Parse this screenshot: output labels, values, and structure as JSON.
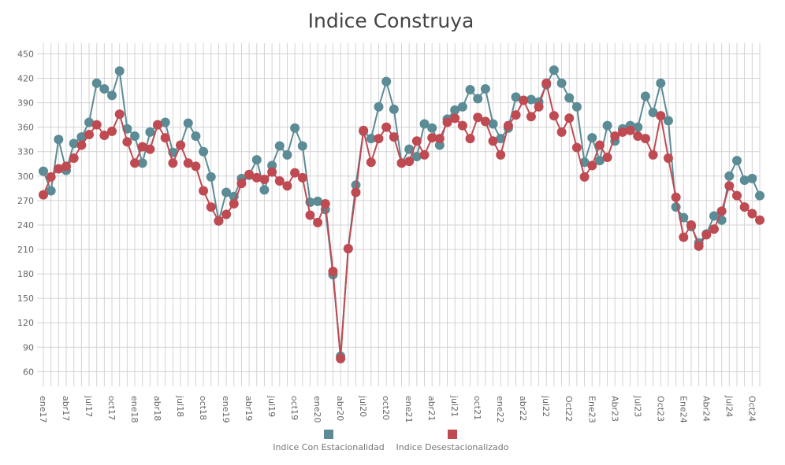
{
  "chart_data": {
    "type": "line",
    "title": "Indice Construya",
    "xlabel": "",
    "ylabel": "",
    "ylim": [
      42,
      463
    ],
    "yticks": [
      60,
      90,
      120,
      150,
      180,
      210,
      240,
      270,
      300,
      330,
      360,
      390,
      420,
      450
    ],
    "grid": true,
    "legend_position": "bottom",
    "x_tick_labels": [
      "ene17",
      "abr17",
      "jul17",
      "oct17",
      "ene18",
      "abr18",
      "jul18",
      "oct18",
      "ene19",
      "abr19",
      "jul19",
      "oct19",
      "ene20",
      "abr20",
      "jul20",
      "oct20",
      "ene21",
      "abr21",
      "jul21",
      "oct21",
      "ene22",
      "abr22",
      "jul22",
      "Oct22",
      "Ene23",
      "Abr23",
      "Jul23",
      "Oct23",
      "Ene24",
      "Abr24",
      "Jul24",
      "Oct24"
    ],
    "x_tick_every_months": 3,
    "series": [
      {
        "name": "Indice Con Estacionalidad",
        "color": "#5b8b95",
        "values": [
          306,
          282,
          345,
          307,
          340,
          348,
          366,
          414,
          407,
          399,
          429,
          358,
          349,
          316,
          354,
          363,
          366,
          329,
          338,
          365,
          349,
          330,
          299,
          245,
          280,
          275,
          297,
          301,
          320,
          283,
          313,
          337,
          326,
          359,
          337,
          268,
          269,
          259,
          179,
          79,
          211,
          289,
          355,
          346,
          385,
          416,
          382,
          316,
          333,
          324,
          364,
          359,
          338,
          370,
          381,
          385,
          406,
          395,
          407,
          364,
          346,
          359,
          397,
          393,
          394,
          391,
          412,
          430,
          414,
          396,
          385,
          317,
          347,
          319,
          362,
          343,
          358,
          362,
          360,
          398,
          378,
          414,
          368,
          262,
          249,
          238,
          218,
          229,
          251,
          246,
          300,
          319,
          295,
          297,
          276
        ]
      },
      {
        "name": "Indice Desestacionalizado",
        "color": "#bf4a52",
        "values": [
          277,
          299,
          309,
          312,
          322,
          338,
          351,
          363,
          350,
          355,
          376,
          342,
          316,
          336,
          333,
          363,
          347,
          316,
          338,
          316,
          312,
          282,
          262,
          245,
          253,
          266,
          291,
          302,
          298,
          296,
          305,
          294,
          288,
          304,
          298,
          252,
          243,
          266,
          183,
          76,
          211,
          280,
          356,
          317,
          346,
          360,
          348,
          316,
          318,
          343,
          326,
          347,
          346,
          366,
          371,
          362,
          346,
          372,
          367,
          343,
          326,
          362,
          375,
          393,
          373,
          385,
          414,
          374,
          354,
          371,
          335,
          299,
          313,
          338,
          323,
          349,
          354,
          356,
          349,
          346,
          326,
          374,
          322,
          274,
          225,
          240,
          214,
          228,
          235,
          257,
          288,
          276,
          262,
          254,
          246
        ]
      }
    ]
  }
}
